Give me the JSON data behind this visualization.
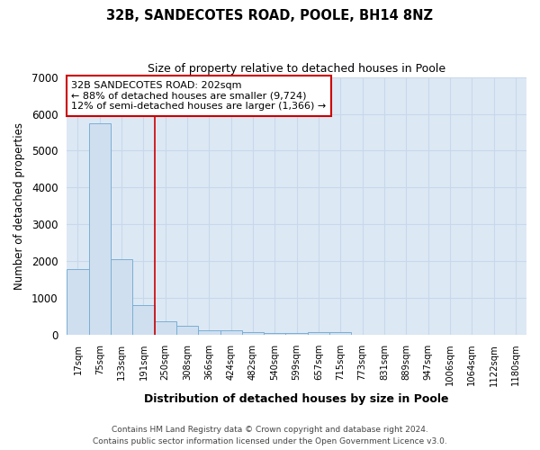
{
  "title1": "32B, SANDECOTES ROAD, POOLE, BH14 8NZ",
  "title2": "Size of property relative to detached houses in Poole",
  "xlabel": "Distribution of detached houses by size in Poole",
  "ylabel": "Number of detached properties",
  "bar_labels": [
    "17sqm",
    "75sqm",
    "133sqm",
    "191sqm",
    "250sqm",
    "308sqm",
    "366sqm",
    "424sqm",
    "482sqm",
    "540sqm",
    "599sqm",
    "657sqm",
    "715sqm",
    "773sqm",
    "831sqm",
    "889sqm",
    "947sqm",
    "1006sqm",
    "1064sqm",
    "1122sqm",
    "1180sqm"
  ],
  "bar_values": [
    1780,
    5750,
    2050,
    820,
    360,
    240,
    135,
    115,
    85,
    65,
    55,
    80,
    80,
    0,
    0,
    0,
    0,
    0,
    0,
    0,
    0
  ],
  "bar_color": "#cfdff0",
  "bar_edge_color": "#7aafd4",
  "grid_color": "#c8d8ea",
  "plot_bg_color": "#dde8f5",
  "fig_bg_color": "#ffffff",
  "red_line_x": 3.5,
  "annotation_line1": "32B SANDECOTES ROAD: 202sqm",
  "annotation_line2": "← 88% of detached houses are smaller (9,724)",
  "annotation_line3": "12% of semi-detached houses are larger (1,366) →",
  "annotation_box_color": "#ffffff",
  "annotation_border_color": "#cc0000",
  "red_line_color": "#cc0000",
  "ylim": [
    0,
    7000
  ],
  "yticks": [
    0,
    1000,
    2000,
    3000,
    4000,
    5000,
    6000,
    7000
  ],
  "footer1": "Contains HM Land Registry data © Crown copyright and database right 2024.",
  "footer2": "Contains public sector information licensed under the Open Government Licence v3.0."
}
